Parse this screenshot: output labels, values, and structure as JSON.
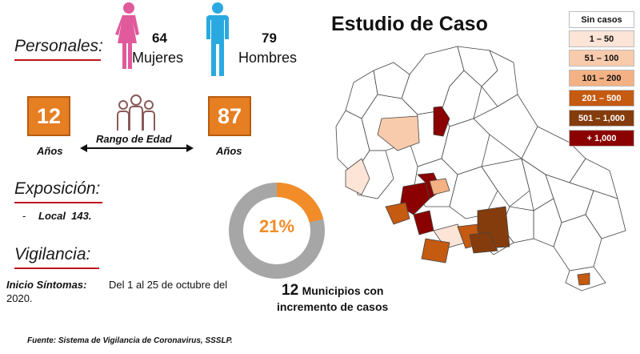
{
  "title": "Estudio de Caso",
  "personales": {
    "label": "Personales:",
    "women_count": "64",
    "women_label": "Mujeres",
    "men_count": "79",
    "men_label": "Hombres"
  },
  "age_range": {
    "min": "12",
    "max": "87",
    "min_unit": "Años",
    "max_unit": "Años",
    "label": "Rango de Edad"
  },
  "exposicion": {
    "label": "Exposición:",
    "bullet": "-",
    "item": "Local  143."
  },
  "vigilancia": {
    "label": "Vigilancia:",
    "inicio_label": "Inicio Síntomas:",
    "inicio_value_line1": "Del 1 al 25 de octubre del",
    "inicio_value_line2": "2020."
  },
  "donut": {
    "percent_text": "21%",
    "fraction": 0.21,
    "highlight_color": "#f28c28",
    "base_color": "#a6a6a6"
  },
  "municipios": {
    "count": "12",
    "line1": "Municipios con",
    "line2": "incremento de casos"
  },
  "legend": [
    {
      "label": "Sin casos",
      "color": "#ffffff",
      "text_color": "#111111"
    },
    {
      "label": "1 – 50",
      "color": "#fce4d6",
      "text_color": "#111111"
    },
    {
      "label": "51 – 100",
      "color": "#f8cbad",
      "text_color": "#111111"
    },
    {
      "label": "101 – 200",
      "color": "#f4b183",
      "text_color": "#111111"
    },
    {
      "label": "201 – 500",
      "color": "#c55a11",
      "text_color": "#ffffff"
    },
    {
      "label": "501 – 1,000",
      "color": "#843c0c",
      "text_color": "#ffffff"
    },
    {
      "label": "+ 1,000",
      "color": "#8b0000",
      "text_color": "#ffffff"
    }
  ],
  "colors": {
    "accent_red": "#c0151a",
    "box_orange": "#e67e22",
    "woman_icon": "#e05a9c",
    "man_icon": "#29a9e0",
    "people_icon": "#8b5a5a"
  },
  "source": "Fuente: Sistema de Vigilancia de Coronavirus, SSSLP."
}
